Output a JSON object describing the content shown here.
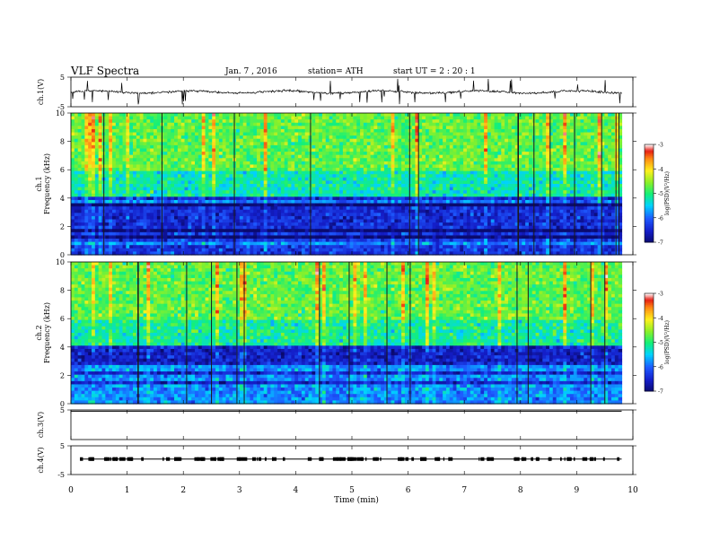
{
  "header": {
    "title": "VLF Spectra",
    "date": "Jan. 7 , 2016",
    "station": "station= ATH",
    "start": "start UT = 2 : 20 : 1"
  },
  "chart_data": [
    {
      "type": "line",
      "panel": "waveform-ch1",
      "ylabel": "ch.1(V)",
      "ylim": [
        -5,
        5
      ],
      "yticks": [
        "5",
        "-5"
      ],
      "xlim": [
        0,
        10
      ],
      "series": [
        {
          "values_description_free": true,
          "x": [
            0,
            9.8
          ],
          "y": [
            0,
            0
          ]
        }
      ]
    },
    {
      "type": "heatmap",
      "panel": "spectrogram-ch1",
      "ylabel": "ch.1\nFrequency (kHz)",
      "ylim": [
        0,
        10
      ],
      "yticks": [
        "0",
        "2",
        "4",
        "6",
        "8",
        "10"
      ],
      "xlim": [
        0,
        10
      ],
      "data_end_min": 9.8,
      "colorbar": {
        "label": "log(PSD)(V²/Hz)",
        "range": [
          -7,
          -3
        ],
        "ticks": [
          "-3",
          "-4",
          "-5",
          "-6",
          "-7"
        ]
      },
      "bands": [
        {
          "from_khz": 0,
          "to_khz": 1.7,
          "mean_logpsd": -6.3
        },
        {
          "from_khz": 1.7,
          "to_khz": 4.2,
          "mean_logpsd": -6.4
        },
        {
          "from_khz": 4.2,
          "to_khz": 6.0,
          "mean_logpsd": -5.2
        },
        {
          "from_khz": 6.0,
          "to_khz": 10.0,
          "mean_logpsd": -4.7
        }
      ]
    },
    {
      "type": "heatmap",
      "panel": "spectrogram-ch2",
      "ylabel": "ch.2\nFrequency (kHz)",
      "ylim": [
        0,
        10
      ],
      "yticks": [
        "0",
        "2",
        "4",
        "6",
        "8",
        "10"
      ],
      "xlim": [
        0,
        10
      ],
      "data_end_min": 9.8,
      "colorbar": {
        "label": "log(PSD)(V²/Hz)",
        "range": [
          -7,
          -3
        ],
        "ticks": [
          "-3",
          "-4",
          "-5",
          "-6",
          "-7"
        ]
      },
      "bands": [
        {
          "from_khz": 0,
          "to_khz": 2.8,
          "mean_logpsd": -5.8
        },
        {
          "from_khz": 2.8,
          "to_khz": 4.2,
          "mean_logpsd": -6.5
        },
        {
          "from_khz": 4.2,
          "to_khz": 6.0,
          "mean_logpsd": -5.1
        },
        {
          "from_khz": 6.0,
          "to_khz": 10.0,
          "mean_logpsd": -4.7
        }
      ]
    },
    {
      "type": "line",
      "panel": "waveform-ch3",
      "ylabel": "ch.3(V)",
      "ylim": [
        -5,
        5
      ],
      "yticks": [
        "5"
      ],
      "xlim": [
        0,
        10
      ]
    },
    {
      "type": "line",
      "panel": "waveform-ch4",
      "ylabel": "ch.4(V)",
      "ylim": [
        -5,
        5
      ],
      "yticks": [
        "5",
        "-5"
      ],
      "xlim": [
        0,
        10
      ],
      "xlabel": "Time (min)",
      "xticks": [
        "0",
        "1",
        "2",
        "3",
        "4",
        "5",
        "6",
        "7",
        "8",
        "9",
        "10"
      ]
    }
  ]
}
